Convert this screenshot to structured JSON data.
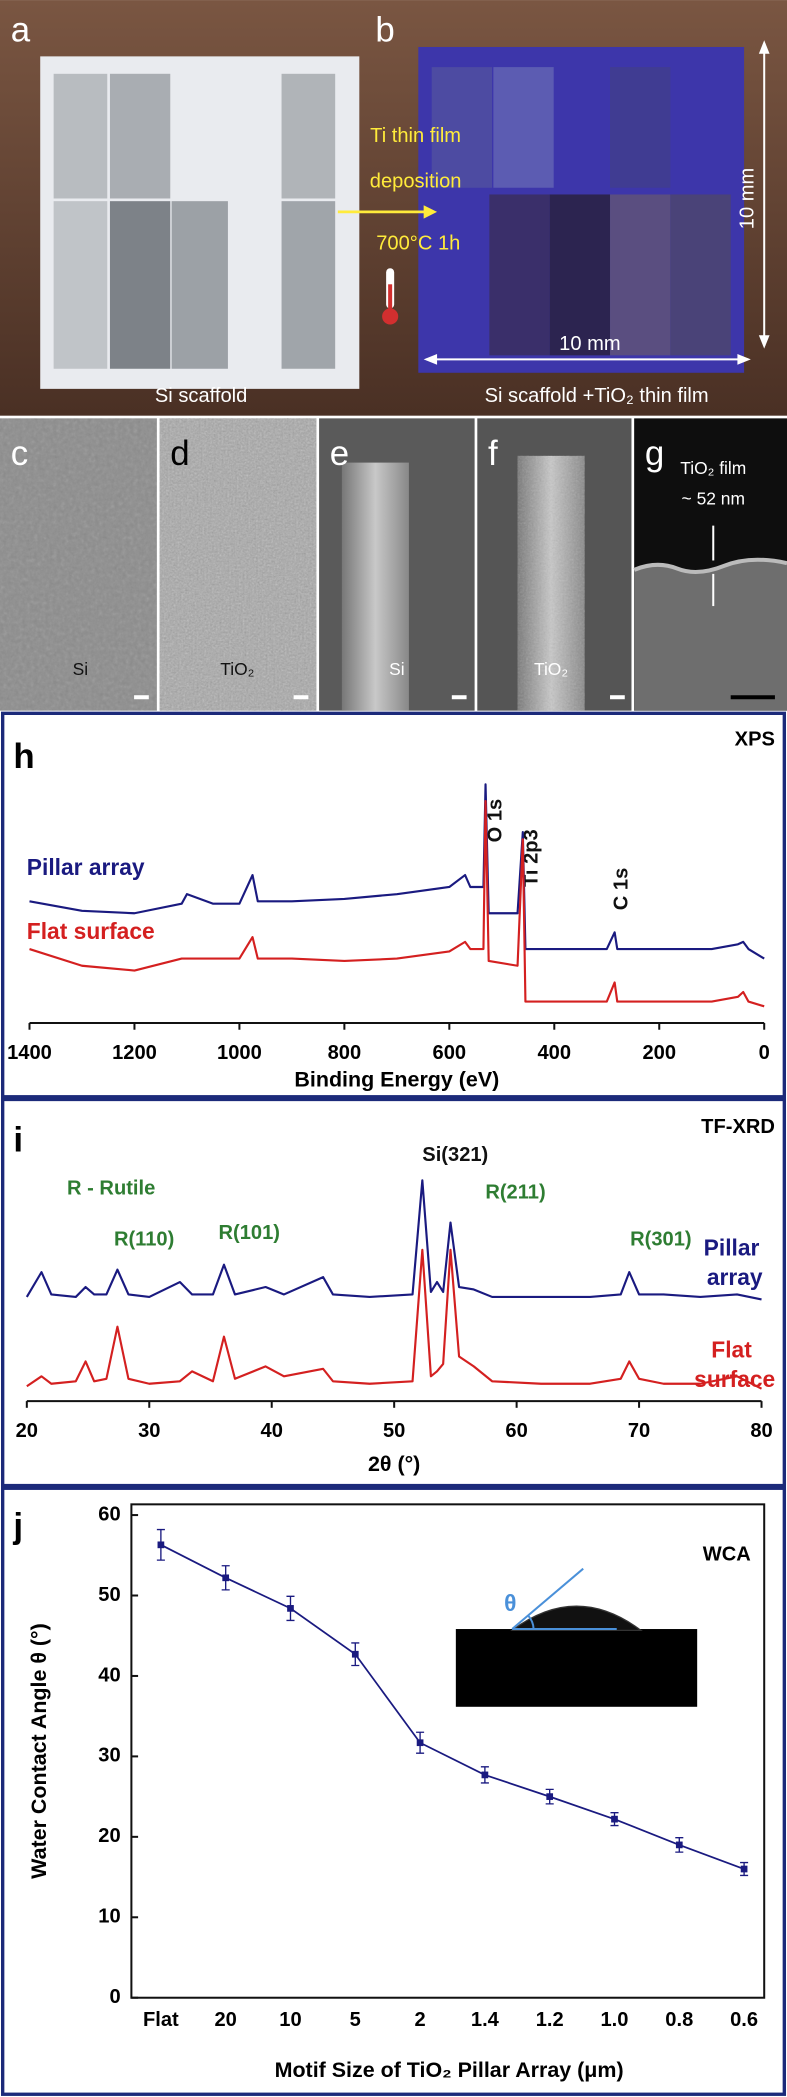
{
  "photo": {
    "label_a": "a",
    "label_b": "b",
    "process": [
      "Ti thin film",
      "deposition",
      "700°C 1h"
    ],
    "caption_a": "Si scaffold",
    "caption_b": "Si scaffold +TiO₂ thin film",
    "dim_vertical": "10 mm",
    "dim_horizontal": "10 mm"
  },
  "sem": [
    {
      "label": "c",
      "material": "Si"
    },
    {
      "label": "d",
      "material": "TiO₂"
    },
    {
      "label": "e",
      "material": "Si"
    },
    {
      "label": "f",
      "material": "TiO₂"
    },
    {
      "label": "g",
      "annotation": [
        "TiO₂ film",
        "~ 52 nm"
      ]
    }
  ],
  "chart_data": [
    {
      "type": "line",
      "panel_label": "h",
      "title": "XPS",
      "x_label": "Binding Energy (eV)",
      "x": [
        1400,
        1300,
        1200,
        1110,
        1100,
        1050,
        1000,
        975,
        965,
        900,
        800,
        700,
        600,
        570,
        560,
        535,
        531,
        525,
        470,
        460,
        455,
        400,
        300,
        285,
        280,
        200,
        100,
        50,
        40,
        30,
        0
      ],
      "xlim": [
        1400,
        0
      ],
      "xticks": [
        1400,
        1200,
        1000,
        800,
        600,
        400,
        200,
        0
      ],
      "ylim": [
        0,
        100
      ],
      "series": [
        {
          "name": "Pillar array",
          "color": "#1a1a80",
          "values": [
            51,
            47,
            46,
            50,
            54,
            50,
            50,
            62,
            51,
            51,
            52,
            54,
            57,
            62,
            57,
            57,
            100,
            46,
            46,
            80,
            31,
            31,
            31,
            38,
            31,
            31,
            31,
            33,
            34,
            31,
            27
          ]
        },
        {
          "name": "Flat surface",
          "color": "#d42020",
          "values": [
            31,
            24,
            22,
            27,
            27,
            27,
            27,
            36,
            27,
            27,
            26,
            27,
            30,
            34,
            31,
            31,
            93,
            26,
            24,
            77,
            9,
            9,
            9,
            17,
            9,
            9,
            9,
            11,
            13,
            9,
            7
          ]
        }
      ],
      "annotations": [
        "O 1s",
        "Ti 2p3",
        "C 1s"
      ]
    },
    {
      "type": "line",
      "panel_label": "i",
      "title": "TF-XRD",
      "x_label": "2θ (°)",
      "x": [
        20,
        21.2,
        22,
        24,
        24.8,
        25.5,
        26.5,
        27.4,
        28.3,
        30,
        32.5,
        33.5,
        35.2,
        36.1,
        37,
        39.5,
        41,
        44.2,
        45,
        48,
        51.5,
        52.3,
        53,
        53.5,
        54,
        54.6,
        55.3,
        56.5,
        58,
        62,
        66,
        68.5,
        69.2,
        70,
        72,
        75,
        78,
        80
      ],
      "xlim": [
        20,
        80
      ],
      "xticks": [
        20,
        30,
        40,
        50,
        60,
        70,
        80
      ],
      "ylim": [
        0,
        100
      ],
      "series": [
        {
          "name": "Pillar array",
          "color": "#1a1a80",
          "values": [
            42,
            52,
            43,
            42,
            46,
            43,
            43,
            53,
            43,
            42,
            48,
            43,
            43,
            55,
            43,
            46,
            43,
            50,
            43,
            42,
            43,
            89,
            44,
            48,
            44,
            72,
            46,
            45,
            42,
            42,
            42,
            43,
            52,
            43,
            43,
            42,
            43,
            41
          ]
        },
        {
          "name": "Flat surface",
          "color": "#d42020",
          "values": [
            6,
            10,
            7,
            8,
            16,
            8,
            9,
            30,
            9,
            7,
            8,
            12,
            8,
            26,
            9,
            14,
            10,
            13,
            8,
            7,
            8,
            61,
            10,
            12,
            15,
            61,
            18,
            14,
            8,
            7,
            7,
            9,
            16,
            9,
            7,
            7,
            10,
            5
          ]
        }
      ],
      "annotations": [
        "R - Rutile",
        "R(110)",
        "R(101)",
        "Si(321)",
        "R(211)",
        "R(301)"
      ]
    },
    {
      "type": "line",
      "panel_label": "j",
      "title": "WCA",
      "x_label": "Motif Size of TiO₂ Pillar Array (μm)",
      "y_label": "Water Contact Angle θ (°)",
      "categories": [
        "Flat",
        "20",
        "10",
        "5",
        "2",
        "1.4",
        "1.2",
        "1.0",
        "0.8",
        "0.6"
      ],
      "values": [
        56.3,
        52.2,
        48.4,
        42.7,
        31.7,
        27.7,
        25.0,
        22.2,
        19.0,
        16.0
      ],
      "errors": [
        1.9,
        1.5,
        1.5,
        1.4,
        1.3,
        1.0,
        0.9,
        0.8,
        0.9,
        0.8
      ],
      "color": "#1a1a80",
      "ylim": [
        0,
        60
      ],
      "yticks": [
        0,
        10,
        20,
        30,
        40,
        50,
        60
      ],
      "inset_label": "θ"
    }
  ]
}
